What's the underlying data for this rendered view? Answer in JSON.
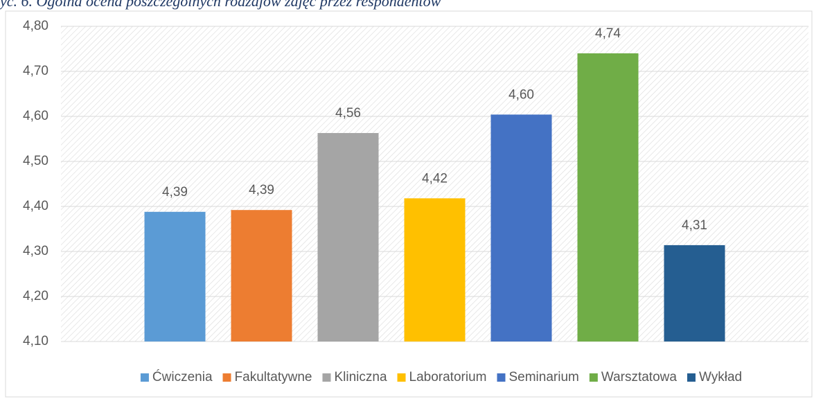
{
  "chart_data": {
    "type": "bar",
    "title": "yc. 6. Ogólna ocena poszczególnych rodzajów zajęć przez respondentów",
    "categories": [
      "Ćwiczenia",
      "Fakultatywne",
      "Kliniczna",
      "Laboratorium",
      "Seminarium",
      "Warsztatowa",
      "Wykład"
    ],
    "values": [
      4.388,
      4.392,
      4.563,
      4.418,
      4.604,
      4.74,
      4.314
    ],
    "value_labels": [
      "4,39",
      "4,39",
      "4,56",
      "4,42",
      "4,60",
      "4,74",
      "4,31"
    ],
    "colors": [
      "#5b9bd5",
      "#ed7d31",
      "#a5a5a5",
      "#ffc000",
      "#4472c4",
      "#70ad47",
      "#255e91"
    ],
    "ylim": [
      4.1,
      4.8
    ],
    "yticks": [
      {
        "value": 4.1,
        "label": "4,10"
      },
      {
        "value": 4.2,
        "label": "4,20"
      },
      {
        "value": 4.3,
        "label": "4,30"
      },
      {
        "value": 4.4,
        "label": "4,40"
      },
      {
        "value": 4.5,
        "label": "4,50"
      },
      {
        "value": 4.6,
        "label": "4,60"
      },
      {
        "value": 4.7,
        "label": "4,70"
      },
      {
        "value": 4.8,
        "label": "4,80"
      }
    ],
    "grid": true,
    "legend": "bottom"
  }
}
